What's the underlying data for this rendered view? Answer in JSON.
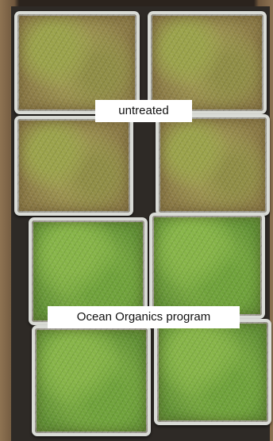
{
  "photo": {
    "labels": {
      "untreated": "untreated",
      "treated": "Ocean Organics program"
    },
    "colors": {
      "untreated_turf": "#9a9a4f",
      "treated_turf": "#7bab42",
      "pot_rim": "#d9dbd6",
      "label_background": "#ffffff"
    }
  }
}
